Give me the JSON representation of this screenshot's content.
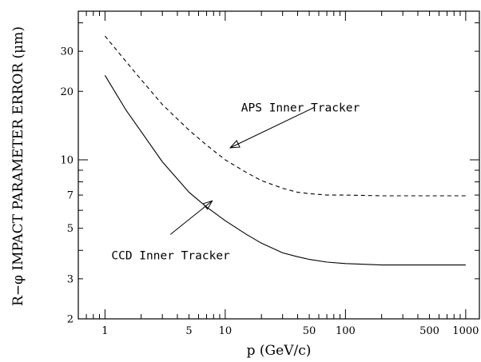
{
  "chart_data": {
    "type": "line",
    "title": "",
    "xlabel": "p (GeV/c)",
    "ylabel": "R−φ IMPACT PARAMETER ERROR (μm)",
    "xscale": "log",
    "yscale": "log",
    "xlim": [
      0.6,
      1300
    ],
    "ylim": [
      2,
      45
    ],
    "x_ticks": [
      "1",
      "5",
      "10",
      "50",
      "100",
      "500",
      "1000"
    ],
    "y_ticks": [
      "2",
      "3",
      "5",
      "7",
      "10",
      "20",
      "30"
    ],
    "grid": false,
    "series": [
      {
        "style": "dashed",
        "x": [
          1,
          1.5,
          2,
          3,
          5,
          7,
          10,
          15,
          20,
          30,
          40,
          50,
          70,
          100,
          200,
          500,
          1000
        ],
        "y": [
          35,
          27,
          22.5,
          17.5,
          13.5,
          11.6,
          10,
          8.8,
          8.1,
          7.5,
          7.2,
          7.1,
          7.0,
          7.0,
          6.95,
          6.95,
          6.95
        ]
      },
      {
        "style": "solid",
        "x": [
          1,
          1.5,
          2,
          3,
          5,
          7,
          10,
          15,
          20,
          30,
          40,
          50,
          70,
          100,
          200,
          500,
          1000
        ],
        "y": [
          23.5,
          16.5,
          13.3,
          9.8,
          7.2,
          6.2,
          5.4,
          4.7,
          4.3,
          3.9,
          3.75,
          3.65,
          3.55,
          3.5,
          3.45,
          3.45,
          3.45
        ]
      }
    ],
    "annotations": [
      {
        "text": "APS Inner Tracker",
        "x": 12,
        "y": 17,
        "arrow_x": 11,
        "arrow_y": 11.3,
        "arrow_from_x": 55,
        "arrow_from_y": 17
      },
      {
        "text": "CCD Inner Tracker",
        "x": 1,
        "y": 3.8,
        "arrow_x": 7.8,
        "arrow_y": 6.6,
        "arrow_from_x": 3.5,
        "arrow_from_y": 4.7
      }
    ]
  }
}
